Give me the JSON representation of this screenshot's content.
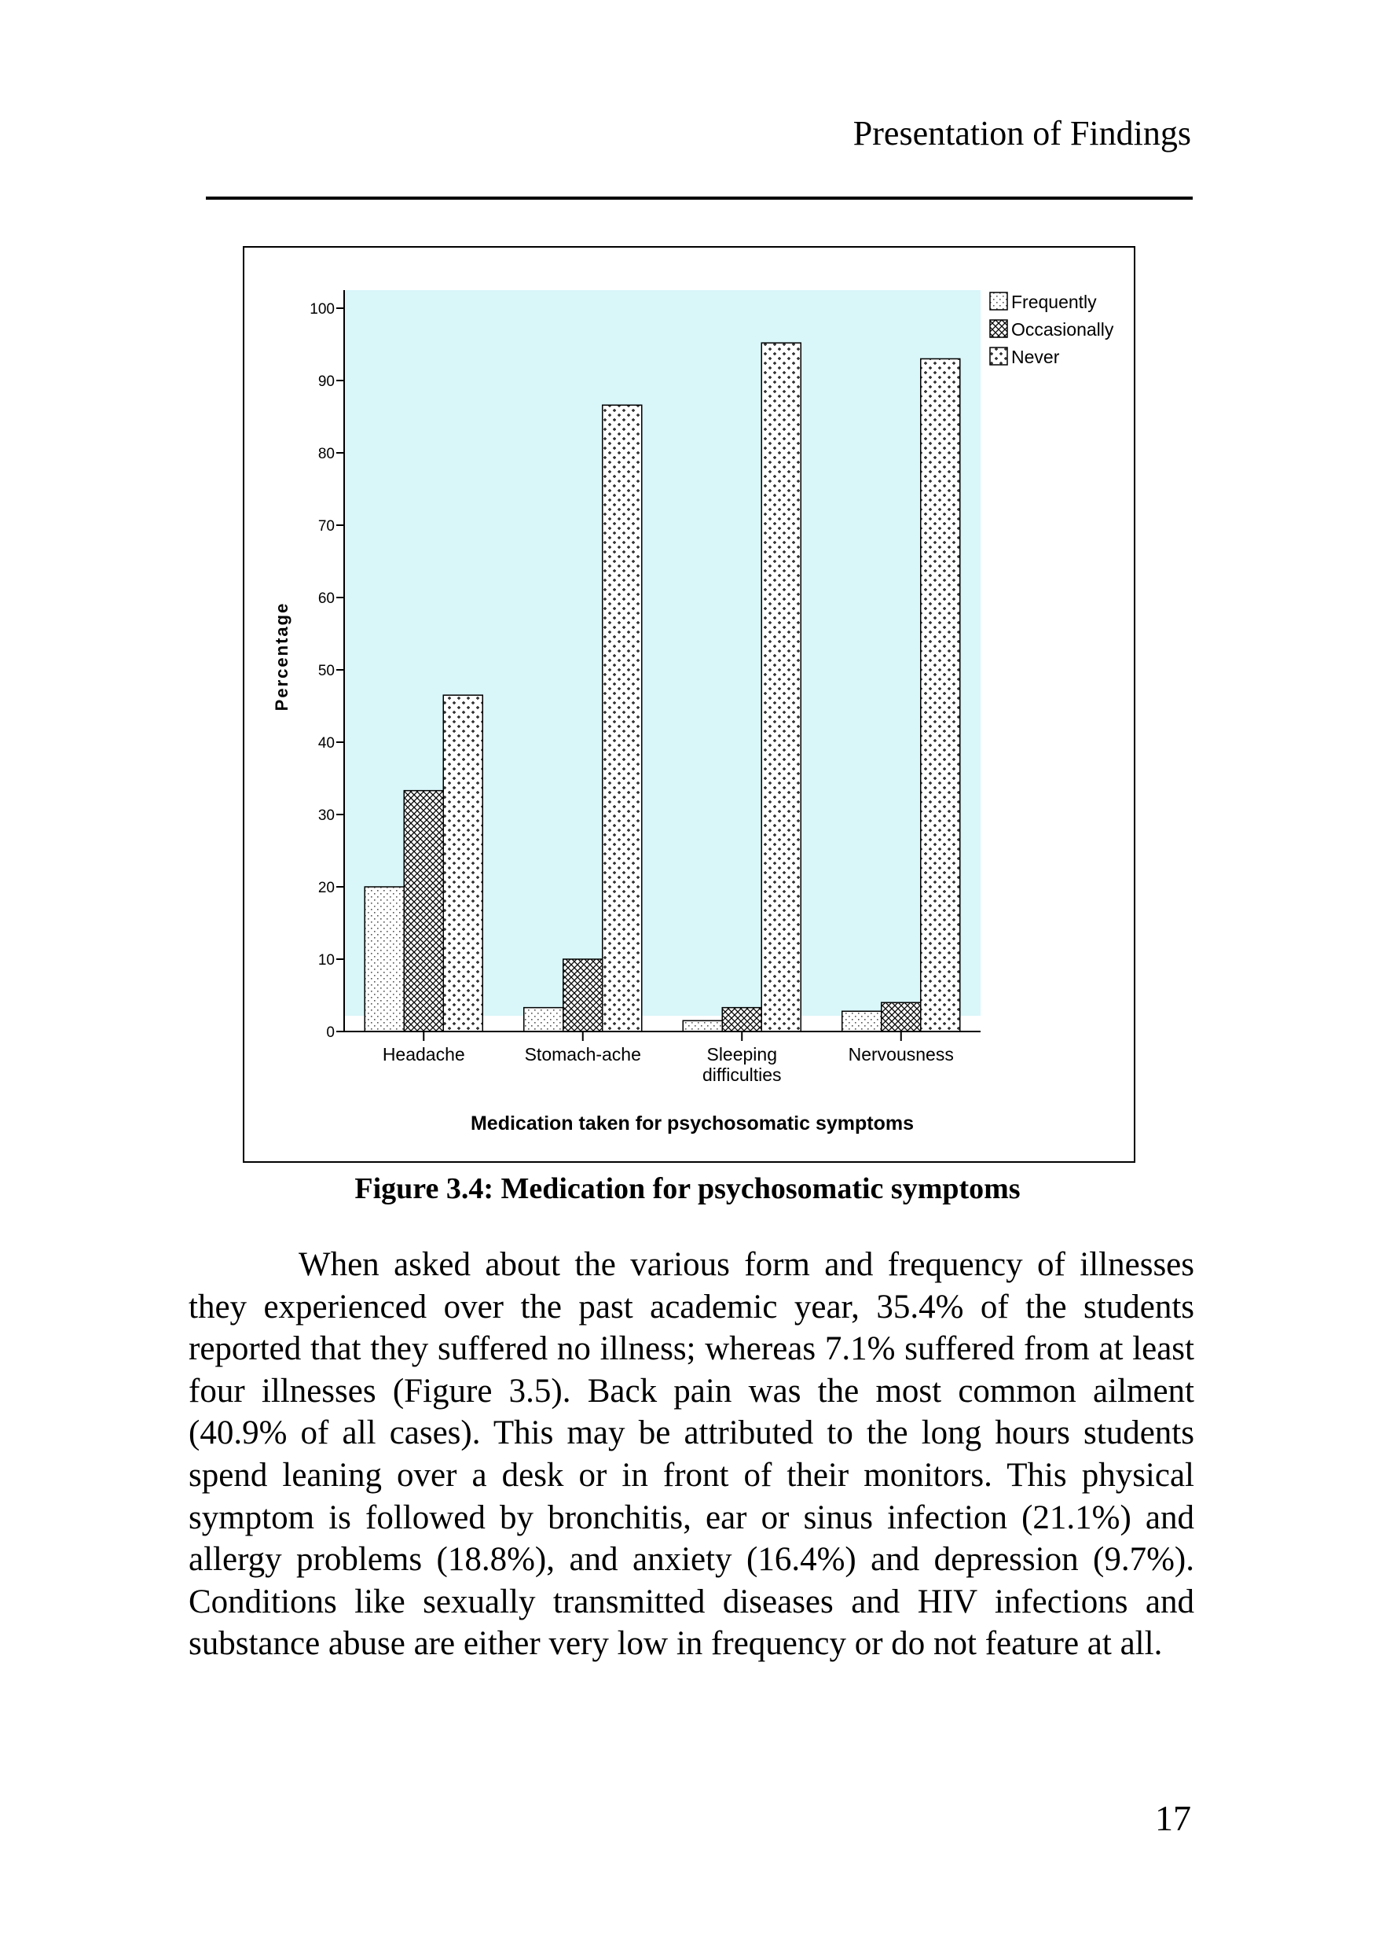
{
  "header": {
    "section_title": "Presentation of Findings"
  },
  "figure": {
    "caption": "Figure 3.4: Medication for psychosomatic symptoms"
  },
  "body": {
    "paragraph": "When asked about the various form and frequency of illnesses they experienced over the past academic year, 35.4% of the students reported that they suffered no illness; whereas 7.1% suffered from at least four illnesses (Figure 3.5).  Back pain was the most common ailment (40.9% of all cases).  This may be attributed to the long hours students spend leaning over a desk or in front of their monitors.  This physical symptom is followed by bronchitis, ear or sinus infection (21.1%) and allergy problems (18.8%), and anxiety (16.4%) and depression (9.7%). Conditions like sexually transmitted diseases and HIV infections and substance abuse are either very low in frequency or do not feature at all."
  },
  "page_number": "17",
  "chart_data": {
    "type": "bar",
    "categories": [
      "Headache",
      "Stomach-ache",
      "Sleeping difficulties",
      "Nervousness"
    ],
    "category_label_lines": [
      [
        "Headache"
      ],
      [
        "Stomach-ache"
      ],
      [
        "Sleeping",
        "difficulties"
      ],
      [
        "Nervousness"
      ]
    ],
    "series": [
      {
        "name": "Frequently",
        "values": [
          20.0,
          3.3,
          1.5,
          2.8
        ],
        "pattern": "dots"
      },
      {
        "name": "Occasionally",
        "values": [
          33.3,
          10.0,
          3.3,
          4.0
        ],
        "pattern": "crosshatch"
      },
      {
        "name": "Never",
        "values": [
          46.5,
          86.6,
          95.2,
          93.0
        ],
        "pattern": "plus"
      }
    ],
    "title": "",
    "xlabel": "Medication taken for psychosomatic symptoms",
    "ylabel": "Percentage",
    "ylim": [
      0,
      100
    ],
    "yticks": [
      0,
      10,
      20,
      30,
      40,
      50,
      60,
      70,
      80,
      90,
      100
    ],
    "grid": false,
    "legend_position": "top-right",
    "colors": {
      "plot_background": "#d9f6f9",
      "bar_fill": "#ffffff",
      "bar_stroke": "#000000",
      "axis": "#000000"
    }
  }
}
